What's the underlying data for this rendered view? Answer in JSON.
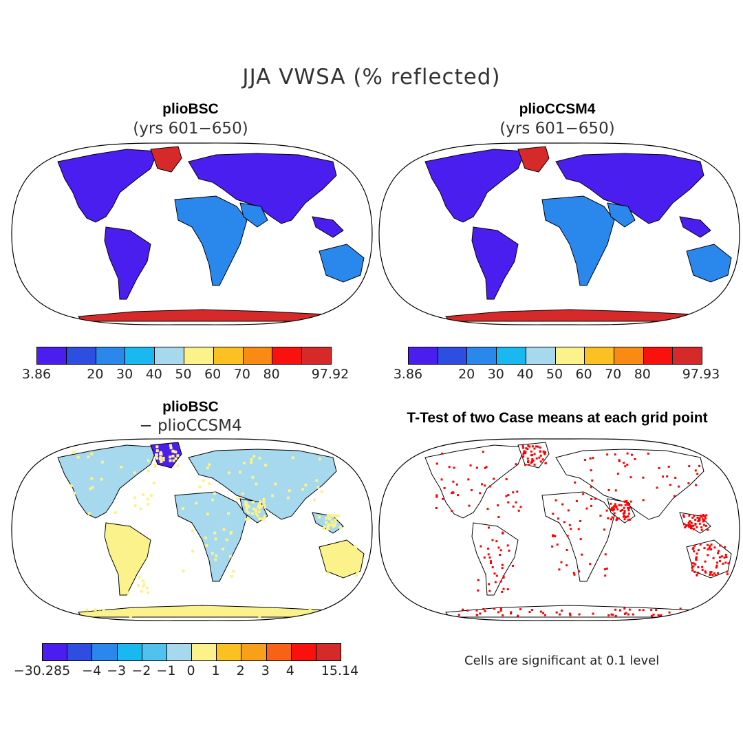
{
  "title": "JJA VWSA (% reflected)",
  "panels": [
    {
      "id": "p1",
      "title": "plioBSC",
      "subtitle": "(yrs 601−650)"
    },
    {
      "id": "p2",
      "title": "plioCCSM4",
      "subtitle": "(yrs 601−650)"
    },
    {
      "id": "p3",
      "title": "plioBSC",
      "subtitle": "− plioCCSM4"
    },
    {
      "id": "p4",
      "title": "T-Test of two Case means at each grid point",
      "subtitle": ""
    }
  ],
  "colorbars": [
    {
      "id": "cb1",
      "colors": [
        "#4b1ef0",
        "#2d4ee0",
        "#2a87ec",
        "#1ab8f0",
        "#a6d8ee",
        "#fbf28c",
        "#fbc021",
        "#f98a14",
        "#f9120d",
        "#d62a2a"
      ],
      "labels": [
        "3.86",
        "20",
        "30",
        "40",
        "50",
        "60",
        "70",
        "80",
        "97.92"
      ]
    },
    {
      "id": "cb2",
      "colors": [
        "#4b1ef0",
        "#2d4ee0",
        "#2a87ec",
        "#1ab8f0",
        "#a6d8ee",
        "#fbf28c",
        "#fbc021",
        "#f98a14",
        "#f9120d",
        "#d62a2a"
      ],
      "labels": [
        "3.86",
        "20",
        "30",
        "40",
        "50",
        "60",
        "70",
        "80",
        "97.93"
      ]
    },
    {
      "id": "cb3",
      "colors": [
        "#4b1ef0",
        "#2d4ee0",
        "#2a87ec",
        "#1ab8f0",
        "#4fc3ee",
        "#a6d8ee",
        "#fbf28c",
        "#fbc021",
        "#f9a01a",
        "#f96214",
        "#f9120d",
        "#d62a2a"
      ],
      "labels": [
        "−30.285",
        "−4",
        "−3",
        "−2",
        "−1",
        "0",
        "1",
        "2",
        "3",
        "4",
        "15.14"
      ]
    }
  ],
  "significance_note": "Cells are significant at 0.1 level",
  "map_colors": {
    "land_low": "#4b1ef0",
    "land_mid": "#2a87ec",
    "ice": "#d62a2a",
    "diff_a": "#a6d8ee",
    "diff_b": "#fbf28c",
    "significant": "#ff0000"
  }
}
